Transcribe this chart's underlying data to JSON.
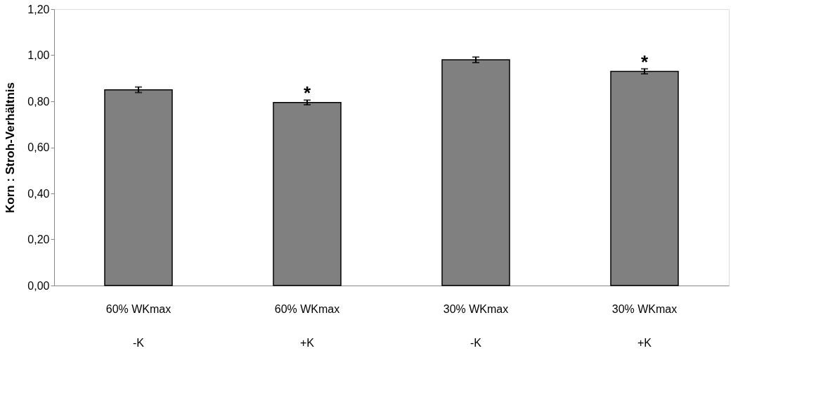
{
  "chart_data": {
    "type": "bar",
    "ylabel": "Korn : Stroh-Verhältnis",
    "categories": [
      "60% WKmax\n-K",
      "60% WKmax\n+K",
      "30% WKmax\n-K",
      "30% WKmax\n+K"
    ],
    "values": [
      0.85,
      0.795,
      0.98,
      0.93
    ],
    "errors": [
      0.012,
      0.01,
      0.012,
      0.011
    ],
    "color": "#808080",
    "ylim": [
      0,
      1.2
    ],
    "yticks": [
      {
        "value": 0,
        "label": "0,00"
      },
      {
        "value": 0.2,
        "label": "0,20"
      },
      {
        "value": 0.4,
        "label": "0,40"
      },
      {
        "value": 0.6,
        "label": "0,60"
      },
      {
        "value": 0.8,
        "label": "0,80"
      },
      {
        "value": 1.0,
        "label": "1,00"
      },
      {
        "value": 1.2,
        "label": "1,20"
      }
    ],
    "grid": false,
    "annotations": [
      {
        "text": "*",
        "x": "60% WKmax\n+K",
        "y": 0.805
      },
      {
        "text": "*",
        "x": "30% WKmax\n+K",
        "y": 0.941
      }
    ]
  }
}
